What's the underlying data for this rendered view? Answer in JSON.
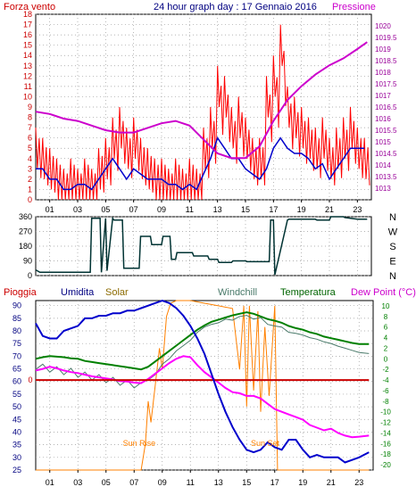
{
  "header": {
    "left_label": "Forza vento",
    "title": "24 hour graph day : 17 Gennaio 2016",
    "right_label": "Pressione"
  },
  "colors": {
    "wind": "#ff0000",
    "wind_avg": "#0000cc",
    "pressure": "#cc00cc",
    "direction": "#003333",
    "humidity": "#0000cc",
    "solar": "#ff8000",
    "windchill": "#4a7a6a",
    "temperature": "#008000",
    "dewpoint": "#ff00ff",
    "rain": "#cc0000",
    "grid": "#9a9a9a",
    "left_axis": "#cc0000",
    "right_axis": "#990099",
    "bottom_right_axis": "#008000",
    "bottom_left_axis": "#000080"
  },
  "x_ticks": [
    "01",
    "03",
    "05",
    "07",
    "09",
    "11",
    "13",
    "15",
    "17",
    "19",
    "21",
    "23"
  ],
  "chart_data": [
    {
      "type": "line",
      "panel": "wind-pressure",
      "y_left": {
        "ylim": [
          0,
          18
        ],
        "ticks": [
          0,
          1,
          2,
          3,
          4,
          5,
          6,
          7,
          8,
          9,
          10,
          11,
          12,
          13,
          14,
          15,
          16,
          17,
          18
        ]
      },
      "y_right": {
        "ylim": [
          1012.5,
          1020.5
        ],
        "ticks": [
          "1013",
          "1013.5",
          "1014",
          "1014.5",
          "1015",
          "1015.5",
          "1016",
          "1016.5",
          "1017",
          "1017.5",
          "1018",
          "1018.5",
          "1019",
          "1019.5",
          "1020"
        ]
      },
      "series": [
        {
          "name": "Forza vento",
          "axis": "left",
          "x": [
            0,
            0.5,
            1,
            1.5,
            2,
            2.5,
            3,
            3.5,
            4,
            4.5,
            5,
            5.5,
            6,
            6.5,
            7,
            7.5,
            8,
            8.5,
            9,
            9.5,
            10,
            10.5,
            11,
            11.5,
            12,
            12.5,
            13,
            13.5,
            14,
            14.5,
            15,
            15.5,
            16,
            16.5,
            17,
            17.5,
            18,
            18.5,
            19,
            19.5,
            20,
            20.5,
            21,
            21.5,
            22,
            22.5,
            23,
            23.5
          ],
          "values": [
            7,
            6,
            5,
            4,
            3,
            4,
            3,
            4,
            3,
            5,
            6,
            8,
            9,
            7,
            8,
            6,
            5,
            4,
            4,
            3,
            4,
            3,
            4,
            3,
            7,
            9,
            13,
            12,
            9,
            10,
            8,
            6,
            6,
            12,
            14,
            17,
            11,
            10,
            9,
            8,
            7,
            8,
            6,
            7,
            8,
            9,
            7,
            6
          ]
        },
        {
          "name": "",
          "axis": "left",
          "x": [
            0,
            0.5,
            1,
            1.5,
            2,
            2.5,
            3,
            3.5,
            4,
            4.5,
            5,
            5.5,
            6,
            6.5,
            7,
            7.5,
            8,
            8.5,
            9,
            9.5,
            10,
            10.5,
            11,
            11.5,
            12,
            12.5,
            13,
            13.5,
            14,
            14.5,
            15,
            15.5,
            16,
            16.5,
            17,
            17.5,
            18,
            18.5,
            19,
            19.5,
            20,
            20.5,
            21,
            21.5,
            22,
            22.5,
            23,
            23.5
          ],
          "values": [
            3,
            3,
            2,
            2,
            1,
            1,
            1.5,
            1.5,
            1,
            2,
            3,
            4,
            3,
            2,
            3,
            2.5,
            2,
            2,
            2,
            1.5,
            1.5,
            1,
            1.5,
            1,
            2.5,
            4,
            6,
            5,
            4,
            4,
            3,
            2.5,
            2,
            3,
            5,
            6,
            5,
            4.5,
            4.5,
            4,
            3,
            3.5,
            2,
            3,
            4,
            5,
            5,
            5
          ]
        },
        {
          "name": "Pressione",
          "axis": "right",
          "x": [
            0,
            1,
            2,
            3,
            4,
            5,
            6,
            7,
            8,
            9,
            10,
            11,
            12,
            13,
            14,
            15,
            16,
            17,
            18,
            19,
            20,
            21,
            22,
            23,
            23.7
          ],
          "values": [
            1016.3,
            1016.2,
            1016.0,
            1015.9,
            1015.7,
            1015.5,
            1015.4,
            1015.4,
            1015.6,
            1015.8,
            1015.9,
            1015.7,
            1015.1,
            1014.5,
            1014.3,
            1014.3,
            1014.8,
            1015.9,
            1016.8,
            1017.4,
            1017.9,
            1018.3,
            1018.6,
            1019.0,
            1019.3
          ]
        }
      ]
    },
    {
      "type": "line",
      "panel": "wind-direction",
      "y_left": {
        "ylim": [
          0,
          360
        ],
        "ticks": [
          0,
          90,
          180,
          270,
          360
        ]
      },
      "y_right_labels": [
        "N",
        "W",
        "S",
        "E",
        "N"
      ],
      "series": [
        {
          "name": "",
          "x": [
            0,
            0.3,
            3.9,
            4,
            4.6,
            4.7,
            5.0,
            5.1,
            5.5,
            5.6,
            6.2,
            6.3,
            7.4,
            7.5,
            8.2,
            8.3,
            9.0,
            9.1,
            9.6,
            9.7,
            10.0,
            10.1,
            11.2,
            11.3,
            12.3,
            12.4,
            13.0,
            13.1,
            14.0,
            14.1,
            15.0,
            15.1,
            16.7,
            16.8,
            17.0,
            17.1,
            18.0,
            18.1,
            20.0,
            20.1,
            21.0,
            21.1,
            22.0,
            22.1,
            23.0,
            23.7
          ],
          "values": [
            35,
            20,
            20,
            350,
            350,
            20,
            350,
            30,
            350,
            340,
            340,
            45,
            45,
            240,
            240,
            190,
            190,
            240,
            240,
            100,
            100,
            140,
            140,
            120,
            120,
            100,
            100,
            80,
            80,
            90,
            90,
            85,
            85,
            340,
            340,
            5,
            340,
            345,
            345,
            340,
            340,
            360,
            360,
            355,
            345,
            345
          ]
        }
      ]
    },
    {
      "type": "line",
      "panel": "temperature-humidity",
      "legend": [
        "Pioggia",
        "Umidita",
        "Solar",
        "Windchill",
        "Temperatura",
        "Dew Point (°C)"
      ],
      "annotations": [
        "Sun Rise",
        "Sun Set"
      ],
      "y_left": {
        "ylim": [
          25,
          92
        ],
        "ticks": [
          25,
          30,
          35,
          40,
          45,
          50,
          55,
          60,
          65,
          70,
          75,
          80,
          85,
          90
        ]
      },
      "y_right": {
        "ylim": [
          -21,
          11
        ],
        "ticks": [
          10,
          8,
          6,
          4,
          2,
          0,
          -2,
          -4,
          -6,
          -8,
          -10,
          -12,
          -14,
          -16,
          -18,
          -20
        ]
      },
      "rain_axis_label": "0",
      "series": [
        {
          "name": "Umidita",
          "axis": "left",
          "x": [
            0,
            0.5,
            1,
            1.5,
            2,
            2.5,
            3,
            3.5,
            4,
            4.5,
            5,
            5.5,
            6,
            6.5,
            7,
            7.5,
            8,
            8.5,
            9,
            9.5,
            10,
            10.5,
            11,
            11.5,
            12,
            12.5,
            13,
            13.5,
            14,
            14.5,
            15,
            15.5,
            16,
            16.5,
            17,
            17.5,
            18,
            18.5,
            19,
            19.5,
            20,
            20.5,
            21,
            21.5,
            22,
            22.5,
            23,
            23.7
          ],
          "values": [
            83,
            78,
            77,
            77,
            80,
            81,
            82,
            85,
            85,
            86,
            86,
            87,
            87,
            88,
            88,
            89,
            90,
            91,
            92,
            91,
            89,
            86,
            82,
            77,
            71,
            63,
            55,
            48,
            42,
            37,
            33,
            32,
            33,
            36,
            34,
            33,
            37,
            37,
            33,
            30,
            31,
            30,
            30,
            30,
            28,
            29,
            30,
            32
          ]
        },
        {
          "name": "Temperatura",
          "axis": "right",
          "x": [
            0,
            0.5,
            1,
            1.5,
            2,
            2.5,
            3,
            3.5,
            4,
            4.5,
            5,
            5.5,
            6,
            6.5,
            7,
            7.5,
            8,
            8.5,
            9,
            9.5,
            10,
            10.5,
            11,
            11.5,
            12,
            12.5,
            13,
            13.5,
            14,
            14.5,
            15,
            15.5,
            16,
            16.5,
            17,
            17.5,
            18,
            18.5,
            19,
            19.5,
            20,
            20.5,
            21,
            21.5,
            22,
            22.5,
            23,
            23.7
          ],
          "values": [
            0,
            0.3,
            0.5,
            0.4,
            0.3,
            0.1,
            0,
            -0.4,
            -0.6,
            -0.8,
            -1,
            -1.2,
            -1.4,
            -1.6,
            -1.8,
            -2,
            -1.5,
            -0.5,
            0.5,
            1.5,
            2.5,
            3.5,
            4.5,
            5.5,
            6.3,
            7,
            7.4,
            7.8,
            8.2,
            8.5,
            8.8,
            8.5,
            8,
            7.5,
            7.2,
            6.8,
            6.2,
            5.8,
            5.5,
            5,
            4.7,
            4.2,
            3.9,
            3.6,
            3.3,
            3,
            2.8,
            2.8
          ]
        },
        {
          "name": "Windchill",
          "axis": "right",
          "x": [
            0,
            0.5,
            1,
            1.5,
            2,
            2.5,
            3,
            3.5,
            4,
            4.5,
            5,
            5.5,
            6,
            6.5,
            7,
            7.5,
            8,
            8.5,
            9,
            9.5,
            10,
            10.5,
            11,
            11.5,
            12,
            12.5,
            13,
            13.5,
            14,
            14.5,
            15,
            15.5,
            16,
            16.5,
            17,
            17.5,
            18,
            18.5,
            19,
            19.5,
            20,
            20.5,
            21,
            21.5,
            22,
            22.5,
            23,
            23.7
          ],
          "values": [
            -2,
            -1,
            -2.5,
            -1.5,
            -3,
            -1.8,
            -3.5,
            -2.5,
            -4,
            -3,
            -4.5,
            -3.5,
            -5,
            -4,
            -5.5,
            -4.5,
            -4,
            -3,
            -1,
            0,
            1.5,
            2.5,
            3.5,
            5,
            6,
            6.5,
            6.8,
            7.5,
            7.3,
            8,
            8.2,
            7.5,
            7.8,
            6.5,
            6.2,
            6,
            5,
            4.8,
            4.5,
            4,
            3.7,
            3.2,
            2.9,
            2.4,
            2,
            1.6,
            1.2,
            1
          ]
        },
        {
          "name": "Dew Point (°C)",
          "axis": "right",
          "x": [
            0,
            0.5,
            1,
            1.5,
            2,
            2.5,
            3,
            3.5,
            4,
            4.5,
            5,
            5.5,
            6,
            6.5,
            7,
            7.5,
            8,
            8.5,
            9,
            9.5,
            10,
            10.5,
            11,
            11.5,
            12,
            12.5,
            13,
            13.5,
            14,
            14.5,
            15,
            15.5,
            16,
            16.5,
            17,
            17.5,
            18,
            18.5,
            19,
            19.5,
            20,
            20.5,
            21,
            21.5,
            22,
            22.5,
            23,
            23.7
          ],
          "values": [
            -2.2,
            -1.9,
            -1.5,
            -1.8,
            -2.2,
            -2.5,
            -2.7,
            -3,
            -3.3,
            -3.5,
            -3.7,
            -3.9,
            -4.2,
            -4.3,
            -4.5,
            -4.6,
            -3.8,
            -2.8,
            -1.8,
            -0.8,
            0,
            0.5,
            0.3,
            -1.2,
            -2.5,
            -3.5,
            -4.5,
            -5.5,
            -6.3,
            -6.5,
            -7,
            -7,
            -7.5,
            -8.5,
            -9.5,
            -10,
            -10.5,
            -11,
            -11.5,
            -12.5,
            -13,
            -13.5,
            -13.2,
            -14,
            -14.5,
            -14.8,
            -14.7,
            -14.5
          ]
        },
        {
          "name": "Solar",
          "axis": "right",
          "x": [
            0,
            7.5,
            7.8,
            8.0,
            8.2,
            8.5,
            8.8,
            9.0,
            9.3,
            9.6,
            10,
            10.5,
            11,
            12,
            13,
            14,
            14.5,
            14.8,
            15.0,
            15.2,
            15.5,
            15.8,
            16.0,
            16.3,
            16.6,
            17.0,
            17.2,
            17.5,
            18,
            23.7
          ],
          "values": [
            -21,
            -21,
            -16,
            -8,
            -12,
            -5,
            2,
            -2,
            8,
            10.5,
            11,
            11,
            11,
            10.5,
            10,
            9.5,
            -2,
            10,
            -9,
            10,
            -6,
            9,
            -10,
            6,
            -7,
            10,
            -21,
            -21,
            -21,
            -21
          ]
        },
        {
          "name": "Pioggia",
          "axis": "right",
          "x": [
            0,
            23.7
          ],
          "values": [
            -4,
            -4
          ]
        }
      ]
    }
  ]
}
